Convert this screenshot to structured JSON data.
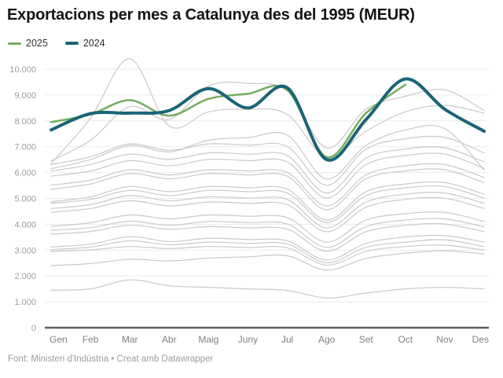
{
  "title": "Exportacions per mes a Catalunya des del 1995 (MEUR)",
  "legend": {
    "items": [
      {
        "label": "2025",
        "color": "#76af60"
      },
      {
        "label": "2024",
        "color": "#1b6478"
      }
    ]
  },
  "footer": {
    "text": "Font: Ministeri d'Indústria • Creat amb Datawrapper"
  },
  "chart_data": {
    "type": "line",
    "title": "Exportacions per mes a Catalunya des del 1995 (MEUR)",
    "categories": [
      "Gen",
      "Feb",
      "Mar",
      "Abr",
      "Maig",
      "Juny",
      "Jul",
      "Ago",
      "Set",
      "Oct",
      "Nov",
      "Des"
    ],
    "xlabel": "",
    "ylabel": "MEUR",
    "ylim": [
      0,
      10000
    ],
    "ytick_interval": 1000,
    "ytick_labels": [
      "0",
      "1.000",
      "2.000",
      "3.000",
      "4.000",
      "5.000",
      "6.000",
      "7.000",
      "8.000",
      "9.000",
      "10.000"
    ],
    "grid": "horizontal",
    "legend_position": "top-left",
    "colors": {
      "grid": "#ebebeb",
      "axis": "#5c5c5c",
      "historical": "#c9c9c9",
      "y_tick_text": "#9c9c9c",
      "x_tick_text": "#7f7f7f"
    },
    "series": [
      {
        "name": "2025",
        "color": "#76af60",
        "width": 2.6,
        "values": [
          7950,
          8250,
          8800,
          8200,
          8850,
          9050,
          9200,
          6600,
          8300,
          9400,
          null,
          null
        ]
      },
      {
        "name": "2024",
        "color": "#1b6478",
        "width": 4,
        "values": [
          7650,
          8280,
          8300,
          8400,
          9250,
          8500,
          9280,
          6500,
          8050,
          9620,
          8450,
          7600
        ]
      }
    ],
    "historical_series": {
      "color": "#c9c9c9",
      "width": 1.2,
      "values": [
        [
          1450,
          1500,
          1850,
          1620,
          1560,
          1500,
          1440,
          1150,
          1340,
          1500,
          1560,
          1500
        ],
        [
          2400,
          2480,
          2650,
          2580,
          2690,
          2740,
          2780,
          2230,
          2680,
          2880,
          2980,
          2850
        ],
        [
          2950,
          3010,
          3140,
          3060,
          3140,
          3100,
          3090,
          2420,
          2950,
          3140,
          3190,
          3000
        ],
        [
          3020,
          3120,
          3360,
          3210,
          3310,
          3260,
          3240,
          2510,
          3110,
          3310,
          3400,
          3140
        ],
        [
          3120,
          3230,
          3520,
          3330,
          3460,
          3410,
          3360,
          2620,
          3260,
          3510,
          3560,
          3310
        ],
        [
          3620,
          3720,
          3960,
          3810,
          3910,
          3860,
          3810,
          2960,
          3710,
          3960,
          4010,
          3710
        ],
        [
          3770,
          3870,
          4120,
          3960,
          4110,
          4060,
          4010,
          3110,
          3910,
          4160,
          4210,
          3900
        ],
        [
          3920,
          4060,
          4360,
          4210,
          4360,
          4310,
          4260,
          3310,
          4160,
          4410,
          4460,
          4110
        ],
        [
          4460,
          4610,
          4910,
          4710,
          4860,
          4810,
          4760,
          3710,
          4660,
          4960,
          5010,
          4610
        ],
        [
          4610,
          4760,
          5110,
          4910,
          5060,
          5010,
          4960,
          3860,
          4860,
          5160,
          5210,
          4810
        ],
        [
          4810,
          4960,
          5310,
          5110,
          5310,
          5260,
          5210,
          4060,
          5110,
          5410,
          5460,
          5010
        ],
        [
          4870,
          5060,
          5460,
          5260,
          5460,
          5410,
          5360,
          4160,
          5260,
          5560,
          5610,
          5160
        ],
        [
          5360,
          5560,
          5960,
          5760,
          5960,
          5910,
          5860,
          4560,
          5760,
          6060,
          6110,
          5610
        ],
        [
          5510,
          5710,
          6110,
          5910,
          6110,
          6060,
          6010,
          4710,
          5910,
          6260,
          6310,
          5810
        ],
        [
          5860,
          6060,
          6460,
          6260,
          6510,
          6460,
          6410,
          5010,
          6310,
          6660,
          6710,
          6160
        ],
        [
          6060,
          6310,
          6710,
          6510,
          6760,
          6710,
          6660,
          5210,
          6560,
          6910,
          6960,
          6410
        ],
        [
          6310,
          6610,
          7110,
          6860,
          7110,
          7060,
          7010,
          5510,
          6910,
          7310,
          7360,
          6760
        ],
        [
          6150,
          6500,
          7050,
          6800,
          7250,
          7350,
          7450,
          5750,
          7050,
          7650,
          7700,
          6100
        ],
        [
          6450,
          7250,
          8550,
          8050,
          9350,
          9450,
          9150,
          6950,
          8450,
          8950,
          9200,
          8400
        ],
        [
          6350,
          8100,
          10400,
          7800,
          8350,
          8450,
          8250,
          6600,
          7600,
          8350,
          8600,
          8300
        ]
      ]
    }
  }
}
